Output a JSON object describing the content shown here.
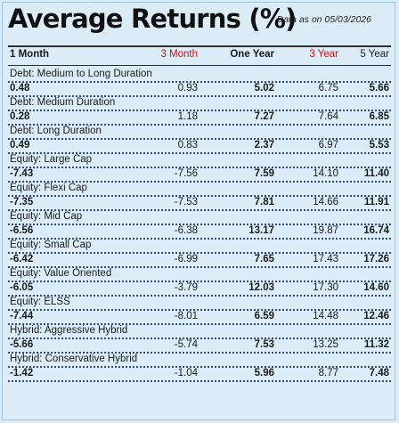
{
  "title": "Average Returns (%)",
  "as_of": "Data as on 05/03/2026",
  "columns": [
    "1 Month",
    "3 Month",
    "One Year",
    "3 Year",
    "5 Year"
  ],
  "rows": [
    {
      "category": "Debt: Medium to Long Duration",
      "values": [
        "0.48",
        "0.93",
        "5.02",
        "6.75",
        "5.66"
      ]
    },
    {
      "category": "Debt: Medium Duration",
      "values": [
        "0.28",
        "1.18",
        "7.27",
        "7.64",
        "6.85"
      ]
    },
    {
      "category": "Debt: Long Duration",
      "values": [
        "0.49",
        "0.83",
        "2.37",
        "6.97",
        "5.53"
      ]
    },
    {
      "category": "Equity: Large Cap",
      "values": [
        "-7.43",
        "-7.56",
        "7.59",
        "14.10",
        "11.40"
      ]
    },
    {
      "category": "Equity: Flexi Cap",
      "values": [
        "-7.35",
        "-7.53",
        "7.81",
        "14.66",
        "11.91"
      ]
    },
    {
      "category": "Equity: Mid Cap",
      "values": [
        "-6.56",
        "-6.38",
        "13.17",
        "19.87",
        "16.74"
      ]
    },
    {
      "category": "Equity: Small Cap",
      "values": [
        "-6.42",
        "-6.99",
        "7.65",
        "17.43",
        "17.26"
      ]
    },
    {
      "category": "Equity: Value Oriented",
      "values": [
        "-6.05",
        "-3.79",
        "12.03",
        "17.30",
        "14.60"
      ]
    },
    {
      "category": "Equity: ELSS",
      "values": [
        "-7.44",
        "-8.01",
        "6.59",
        "14.48",
        "12.46"
      ]
    },
    {
      "category": "Hybrid: Aggressive Hybrid",
      "values": [
        "-5.66",
        "-5.74",
        "7.53",
        "13.25",
        "11.32"
      ]
    },
    {
      "category": "Hybrid: Conservative Hybrid",
      "values": [
        "-1.42",
        "-1.04",
        "5.96",
        "8.77",
        "7.48"
      ]
    }
  ]
}
